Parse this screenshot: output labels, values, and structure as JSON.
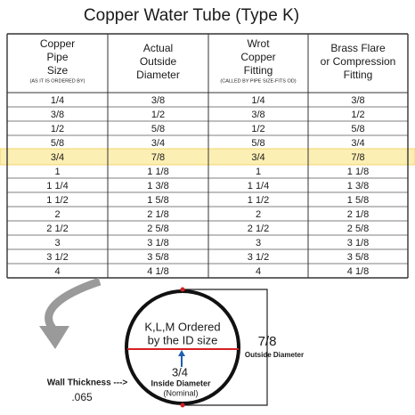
{
  "title": "Copper Water Tube (Type K)",
  "table": {
    "header": [
      {
        "lines": [
          "Copper",
          "Pipe",
          "Size"
        ],
        "note": "(AS IT IS ORDERED BY)"
      },
      {
        "lines": [
          "Actual",
          "Outside",
          "Diameter"
        ]
      },
      {
        "lines": [
          "Wrot",
          "Copper",
          "Fitting"
        ],
        "note": "(CALLED BY PIPE SIZE-FITS OD)"
      },
      {
        "lines": [
          "Brass Flare",
          "or Compression",
          "Fitting"
        ]
      }
    ],
    "rows": [
      [
        "1/4",
        "3/8",
        "1/4",
        "3/8"
      ],
      [
        "3/8",
        "1/2",
        "3/8",
        "1/2"
      ],
      [
        "1/2",
        "5/8",
        "1/2",
        "5/8"
      ],
      [
        "5/8",
        "3/4",
        "5/8",
        "3/4"
      ],
      [
        "3/4",
        "7/8",
        "3/4",
        "7/8"
      ],
      [
        "1",
        "1 1/8",
        "1",
        "1 1/8"
      ],
      [
        "1 1/4",
        "1 3/8",
        "1 1/4",
        "1 3/8"
      ],
      [
        "1 1/2",
        "1 5/8",
        "1 1/2",
        "1 5/8"
      ],
      [
        "2",
        "2 1/8",
        "2",
        "2 1/8"
      ],
      [
        "2 1/2",
        "2 5/8",
        "2 1/2",
        "2 5/8"
      ],
      [
        "3",
        "3 1/8",
        "3",
        "3 1/8"
      ],
      [
        "3 1/2",
        "3 5/8",
        "3 1/2",
        "3 5/8"
      ],
      [
        "4",
        "4 1/8",
        "4",
        "4 1/8"
      ]
    ]
  },
  "diagram": {
    "circle_lines": [
      "K,L,M Ordered",
      "by the ID size"
    ],
    "outside_value": "7/8",
    "outside_label": "Outside Diameter",
    "inside_value": "3/4",
    "inside_label": "Inside Diameter",
    "inside_note": "(Nominal)",
    "wall_label": "Wall Thickness --->",
    "wall_value": ".065"
  }
}
